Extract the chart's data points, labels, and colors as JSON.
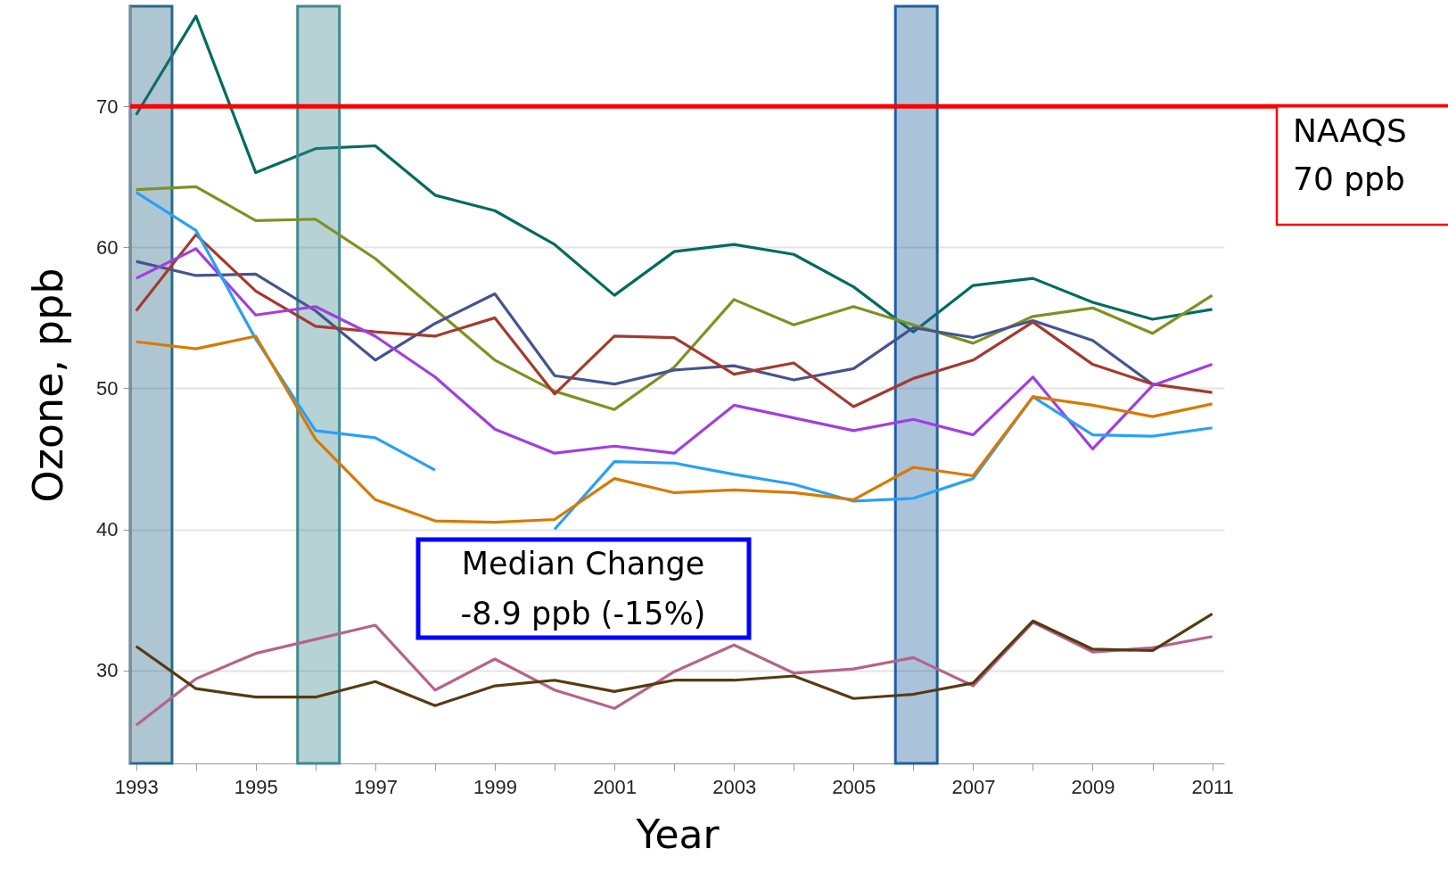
{
  "chart_data": {
    "type": "line",
    "xlabel": "Year",
    "ylabel": "Ozone, ppb",
    "x": [
      1993,
      1994,
      1995,
      1996,
      1997,
      1998,
      1999,
      2000,
      2001,
      2002,
      2003,
      2004,
      2005,
      2006,
      2007,
      2008,
      2009,
      2010,
      2011
    ],
    "series": [
      {
        "color": "#006b5f",
        "values": [
          69.4,
          76.4,
          65.3,
          67.0,
          67.2,
          63.7,
          62.6,
          60.2,
          56.6,
          59.7,
          60.2,
          59.5,
          57.2,
          54.0,
          57.3,
          57.8,
          56.1,
          54.9,
          55.6
        ]
      },
      {
        "color": "#7f9122",
        "values": [
          64.1,
          64.3,
          61.9,
          62.0,
          59.2,
          55.6,
          52.0,
          49.8,
          48.5,
          51.5,
          56.3,
          54.5,
          55.8,
          54.5,
          53.2,
          55.1,
          55.7,
          53.9,
          56.6
        ]
      },
      {
        "color": "#45548f",
        "values": [
          59.0,
          58.0,
          58.1,
          55.5,
          52.0,
          54.6,
          56.7,
          50.9,
          50.3,
          51.3,
          51.6,
          50.6,
          51.4,
          54.3,
          53.6,
          54.8,
          53.4,
          50.3,
          null
        ]
      },
      {
        "color": "#a33b2e",
        "values": [
          55.5,
          60.9,
          56.9,
          54.4,
          54.0,
          53.7,
          55.0,
          49.6,
          53.7,
          53.6,
          51.0,
          51.8,
          48.7,
          50.7,
          52.0,
          54.7,
          51.7,
          50.3,
          49.7
        ]
      },
      {
        "color": "#a13ee0",
        "values": [
          57.8,
          59.9,
          55.2,
          55.8,
          53.7,
          50.8,
          47.1,
          45.4,
          45.9,
          45.4,
          48.8,
          47.9,
          47.0,
          47.8,
          46.7,
          50.8,
          45.7,
          50.2,
          51.7
        ]
      },
      {
        "color": "#2aa0f5",
        "values": [
          63.9,
          61.2,
          53.5,
          47.0,
          46.5,
          44.2,
          null,
          40.0,
          44.8,
          44.7,
          43.9,
          43.2,
          42.0,
          42.2,
          43.6,
          49.4,
          46.7,
          46.6,
          47.2
        ]
      },
      {
        "color": "#d77a00",
        "values": [
          53.3,
          52.8,
          53.7,
          46.4,
          42.1,
          40.6,
          40.5,
          40.7,
          43.6,
          42.6,
          42.8,
          42.6,
          42.1,
          44.4,
          43.8,
          49.4,
          48.8,
          48.0,
          48.9
        ]
      },
      {
        "color": "#b5648a",
        "values": [
          26.1,
          29.4,
          31.2,
          32.2,
          33.2,
          28.6,
          30.8,
          28.6,
          27.3,
          29.9,
          31.8,
          29.8,
          30.1,
          30.9,
          28.9,
          33.4,
          31.3,
          31.6,
          32.4
        ]
      },
      {
        "color": "#583a10",
        "values": [
          31.7,
          28.7,
          28.1,
          28.1,
          29.2,
          27.5,
          28.9,
          29.3,
          28.5,
          29.3,
          29.3,
          29.6,
          28.0,
          28.3,
          29.1,
          33.5,
          31.5,
          31.4,
          34.0
        ]
      }
    ],
    "xlim": [
      1992.9,
      2011.2
    ],
    "xticks": [
      1993,
      {
        "value": 1994,
        "label": null
      },
      1995,
      {
        "value": 1996,
        "label": null
      },
      1997,
      {
        "value": 1998,
        "label": null
      },
      1999,
      {
        "value": 2000,
        "label": null
      },
      2001,
      {
        "value": 2002,
        "label": null
      },
      2003,
      {
        "value": 2004,
        "label": null
      },
      2005,
      {
        "value": 2006,
        "label": null
      },
      2007,
      {
        "value": 2008,
        "label": null
      },
      2009,
      {
        "value": 2010,
        "label": null
      },
      2011
    ],
    "ylim": [
      23.4,
      77.1
    ],
    "yticks": [
      30,
      40,
      50,
      60,
      70
    ],
    "grid": "y",
    "ref_lines": [
      {
        "axis": "y",
        "value": 70,
        "label": "NAAQS\n70 ppb",
        "color": "#ff0000"
      }
    ],
    "bands": [
      {
        "axis": "x",
        "from": 1992.9,
        "to": 1993.6,
        "color": "#2a6a8a"
      },
      {
        "axis": "x",
        "from": 1995.7,
        "to": 1996.4,
        "color": "#3f8a8f"
      },
      {
        "axis": "x",
        "from": 2005.7,
        "to": 2006.4,
        "color": "#1f5f9f"
      }
    ],
    "annotations": [
      "Median Change\n-8.9 ppb (-15%)"
    ]
  }
}
